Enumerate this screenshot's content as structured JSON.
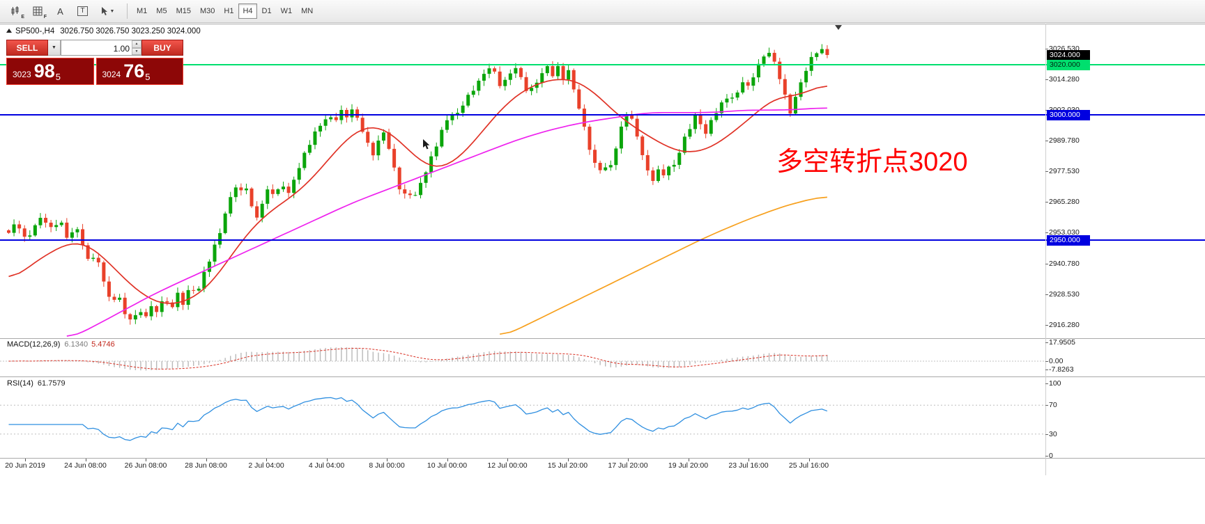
{
  "toolbar": {
    "tools": [
      {
        "badge": "E"
      },
      {
        "badge": "F"
      },
      {
        "label": "A"
      },
      {
        "label": "T"
      },
      {
        "label": ""
      }
    ],
    "timeframes": [
      "M1",
      "M5",
      "M15",
      "M30",
      "H1",
      "H4",
      "D1",
      "W1",
      "MN"
    ],
    "active_timeframe": "H4"
  },
  "chart": {
    "symbol_period": "SP500-,H4",
    "ohlc": "3026.750 3026.750 3023.250 3024.000",
    "trade_panel": {
      "sell_label": "SELL",
      "buy_label": "BUY",
      "volume": "1.00",
      "bid": {
        "prefix": "3023",
        "big": "98",
        "sup": "5"
      },
      "ask": {
        "prefix": "3024",
        "big": "76",
        "sup": "5"
      }
    },
    "annotation": {
      "text": "多空转折点3020",
      "color": "#ff0000"
    },
    "price_axis": {
      "ticks": [
        "3026.530",
        "3014.280",
        "3002.030",
        "2989.780",
        "2977.530",
        "2965.280",
        "2953.030",
        "2940.780",
        "2928.530",
        "2916.280"
      ],
      "badges": [
        {
          "label": "3024.000",
          "price": 3024.0,
          "bg": "#000000",
          "fg": "#ffffff"
        },
        {
          "label": "3020.000",
          "price": 3020.0,
          "bg": "#00df6e",
          "fg": "#00230f"
        },
        {
          "label": "3000.000",
          "price": 3000.0,
          "bg": "#0000e0",
          "fg": "#ffffff"
        },
        {
          "label": "2950.000",
          "price": 2950.0,
          "bg": "#0000e0",
          "fg": "#ffffff"
        }
      ]
    },
    "levels": [
      {
        "price": 3020.0,
        "color": "#00df6e",
        "width": 2
      },
      {
        "price": 3000.0,
        "color": "#0000e0",
        "width": 2
      },
      {
        "price": 2950.0,
        "color": "#0000e0",
        "width": 2
      }
    ]
  },
  "macd": {
    "label": "MACD(12,26,9)",
    "value_main": "6.1340",
    "value_signal": "5.4746",
    "axis_labels": [
      "17.9505",
      "0.00",
      "-7.8263"
    ]
  },
  "rsi": {
    "label": "RSI(14)",
    "value": "61.7579",
    "axis_labels": [
      "100",
      "70",
      "30",
      "0"
    ]
  },
  "time_axis": [
    "20 Jun 2019",
    "24 Jun 08:00",
    "26 Jun 08:00",
    "28 Jun 08:00",
    "2 Jul 04:00",
    "4 Jul 04:00",
    "8 Jul 00:00",
    "10 Jul 00:00",
    "12 Jul 00:00",
    "15 Jul 20:00",
    "17 Jul 20:00",
    "19 Jul 20:00",
    "23 Jul 16:00",
    "25 Jul 16:00"
  ],
  "chart_data": {
    "type": "candlestick",
    "symbol": "SP500-",
    "period": "H4",
    "price_range": [
      2916.28,
      3026.53
    ],
    "last_price": 3024.0,
    "candle_count": 156,
    "colors": {
      "up": "#0ba50b",
      "down": "#e9412a",
      "macd_hist": "#b9b9b9",
      "macd_signal": "#d92f22",
      "rsi": "#2f8fe0"
    },
    "close_path": [
      [
        0,
        2953
      ],
      [
        0.01,
        2957
      ],
      [
        0.02,
        2950
      ],
      [
        0.03,
        2955
      ],
      [
        0.04,
        2960
      ],
      [
        0.052,
        2954
      ],
      [
        0.062,
        2958
      ],
      [
        0.072,
        2951
      ],
      [
        0.082,
        2956
      ],
      [
        0.09,
        2949
      ],
      [
        0.098,
        2940
      ],
      [
        0.106,
        2945
      ],
      [
        0.112,
        2938
      ],
      [
        0.12,
        2930
      ],
      [
        0.128,
        2925
      ],
      [
        0.134,
        2930
      ],
      [
        0.14,
        2921
      ],
      [
        0.146,
        2916
      ],
      [
        0.152,
        2922
      ],
      [
        0.158,
        2918
      ],
      [
        0.164,
        2924
      ],
      [
        0.17,
        2919
      ],
      [
        0.176,
        2925
      ],
      [
        0.182,
        2921
      ],
      [
        0.19,
        2927
      ],
      [
        0.198,
        2922
      ],
      [
        0.206,
        2929
      ],
      [
        0.214,
        2925
      ],
      [
        0.222,
        2932
      ],
      [
        0.23,
        2928
      ],
      [
        0.238,
        2936
      ],
      [
        0.246,
        2943
      ],
      [
        0.254,
        2950
      ],
      [
        0.262,
        2958
      ],
      [
        0.27,
        2966
      ],
      [
        0.276,
        2972
      ],
      [
        0.282,
        2968
      ],
      [
        0.29,
        2972
      ],
      [
        0.296,
        2964
      ],
      [
        0.302,
        2959
      ],
      [
        0.31,
        2965
      ],
      [
        0.318,
        2971
      ],
      [
        0.326,
        2967
      ],
      [
        0.334,
        2973
      ],
      [
        0.342,
        2969
      ],
      [
        0.35,
        2976
      ],
      [
        0.36,
        2983
      ],
      [
        0.37,
        2990
      ],
      [
        0.38,
        2996
      ],
      [
        0.39,
        3000
      ],
      [
        0.398,
        2998
      ],
      [
        0.406,
        3001
      ],
      [
        0.414,
        2999
      ],
      [
        0.42,
        3002
      ],
      [
        0.428,
        2998
      ],
      [
        0.436,
        2991
      ],
      [
        0.444,
        2984
      ],
      [
        0.452,
        2989
      ],
      [
        0.458,
        2993
      ],
      [
        0.464,
        2987
      ],
      [
        0.47,
        2980
      ],
      [
        0.476,
        2973
      ],
      [
        0.482,
        2967
      ],
      [
        0.488,
        2971
      ],
      [
        0.494,
        2965
      ],
      [
        0.5,
        2970
      ],
      [
        0.508,
        2976
      ],
      [
        0.516,
        2983
      ],
      [
        0.524,
        2990
      ],
      [
        0.532,
        2996
      ],
      [
        0.54,
        3001
      ],
      [
        0.546,
        2998
      ],
      [
        0.552,
        3003
      ],
      [
        0.56,
        3007
      ],
      [
        0.57,
        3012
      ],
      [
        0.58,
        3016
      ],
      [
        0.588,
        3019
      ],
      [
        0.596,
        3015
      ],
      [
        0.602,
        3011
      ],
      [
        0.61,
        3016
      ],
      [
        0.618,
        3020
      ],
      [
        0.624,
        3016
      ],
      [
        0.63,
        3011
      ],
      [
        0.636,
        3008
      ],
      [
        0.644,
        3013
      ],
      [
        0.652,
        3017
      ],
      [
        0.658,
        3020
      ],
      [
        0.664,
        3016
      ],
      [
        0.672,
        3019
      ],
      [
        0.678,
        3014
      ],
      [
        0.684,
        3017
      ],
      [
        0.69,
        3011
      ],
      [
        0.696,
        3004
      ],
      [
        0.702,
        2997
      ],
      [
        0.708,
        2989
      ],
      [
        0.714,
        2982
      ],
      [
        0.72,
        2976
      ],
      [
        0.726,
        2981
      ],
      [
        0.732,
        2976
      ],
      [
        0.738,
        2983
      ],
      [
        0.744,
        2990
      ],
      [
        0.75,
        2997
      ],
      [
        0.756,
        3002
      ],
      [
        0.762,
        2997
      ],
      [
        0.768,
        2991
      ],
      [
        0.774,
        2984
      ],
      [
        0.78,
        2978
      ],
      [
        0.786,
        2974
      ],
      [
        0.792,
        2979
      ],
      [
        0.798,
        2975
      ],
      [
        0.804,
        2980
      ],
      [
        0.81,
        2977
      ],
      [
        0.818,
        2984
      ],
      [
        0.826,
        2991
      ],
      [
        0.834,
        2997
      ],
      [
        0.84,
        3001
      ],
      [
        0.846,
        2996
      ],
      [
        0.852,
        2992
      ],
      [
        0.858,
        2997
      ],
      [
        0.864,
        3001
      ],
      [
        0.872,
        3005
      ],
      [
        0.88,
        3009
      ],
      [
        0.886,
        3006
      ],
      [
        0.892,
        3010
      ],
      [
        0.898,
        3014
      ],
      [
        0.904,
        3010
      ],
      [
        0.91,
        3016
      ],
      [
        0.916,
        3020
      ],
      [
        0.922,
        3024
      ],
      [
        0.928,
        3026
      ],
      [
        0.934,
        3022
      ],
      [
        0.94,
        3017
      ],
      [
        0.945,
        3011
      ],
      [
        0.95,
        3005
      ],
      [
        0.955,
        3001
      ],
      [
        0.96,
        3006
      ],
      [
        0.966,
        3012
      ],
      [
        0.972,
        3017
      ],
      [
        0.978,
        3021
      ],
      [
        0.984,
        3024
      ],
      [
        0.99,
        3026
      ],
      [
        1,
        3024
      ]
    ],
    "overlays": [
      {
        "name": "ma-fast-red",
        "color": "#e03226",
        "path": [
          [
            0,
            2933
          ],
          [
            0.03,
            2941
          ],
          [
            0.06,
            2947
          ],
          [
            0.08,
            2950
          ],
          [
            0.1,
            2948
          ],
          [
            0.12,
            2942
          ],
          [
            0.14,
            2935
          ],
          [
            0.16,
            2929
          ],
          [
            0.18,
            2925
          ],
          [
            0.2,
            2924
          ],
          [
            0.22,
            2926
          ],
          [
            0.24,
            2930
          ],
          [
            0.26,
            2938
          ],
          [
            0.28,
            2948
          ],
          [
            0.3,
            2956
          ],
          [
            0.32,
            2962
          ],
          [
            0.34,
            2966
          ],
          [
            0.36,
            2971
          ],
          [
            0.38,
            2978
          ],
          [
            0.4,
            2986
          ],
          [
            0.42,
            2993
          ],
          [
            0.44,
            2996
          ],
          [
            0.46,
            2995
          ],
          [
            0.48,
            2989
          ],
          [
            0.5,
            2982
          ],
          [
            0.52,
            2978
          ],
          [
            0.54,
            2980
          ],
          [
            0.56,
            2986
          ],
          [
            0.58,
            2994
          ],
          [
            0.6,
            3002
          ],
          [
            0.62,
            3008
          ],
          [
            0.64,
            3012
          ],
          [
            0.66,
            3014
          ],
          [
            0.68,
            3015
          ],
          [
            0.7,
            3013
          ],
          [
            0.72,
            3008
          ],
          [
            0.74,
            3001
          ],
          [
            0.76,
            2996
          ],
          [
            0.78,
            2992
          ],
          [
            0.8,
            2988
          ],
          [
            0.82,
            2985
          ],
          [
            0.84,
            2985
          ],
          [
            0.86,
            2987
          ],
          [
            0.88,
            2992
          ],
          [
            0.9,
            2997
          ],
          [
            0.92,
            3003
          ],
          [
            0.94,
            3008
          ],
          [
            0.96,
            3007
          ],
          [
            0.98,
            3010
          ],
          [
            1,
            3013
          ]
        ]
      },
      {
        "name": "ma-medium-magenta",
        "color": "#ee22ee",
        "path": [
          [
            0.07,
            2910
          ],
          [
            0.1,
            2915
          ],
          [
            0.14,
            2922
          ],
          [
            0.18,
            2929
          ],
          [
            0.22,
            2935
          ],
          [
            0.26,
            2941
          ],
          [
            0.3,
            2947
          ],
          [
            0.34,
            2953
          ],
          [
            0.38,
            2959
          ],
          [
            0.42,
            2965
          ],
          [
            0.46,
            2970
          ],
          [
            0.5,
            2975
          ],
          [
            0.54,
            2980
          ],
          [
            0.58,
            2985
          ],
          [
            0.62,
            2990
          ],
          [
            0.66,
            2994
          ],
          [
            0.7,
            2997
          ],
          [
            0.74,
            2999
          ],
          [
            0.78,
            3001
          ],
          [
            0.82,
            3001
          ],
          [
            0.86,
            3001
          ],
          [
            0.9,
            3002
          ],
          [
            0.95,
            3002
          ],
          [
            1,
            3003
          ]
        ]
      },
      {
        "name": "ma-slow-orange",
        "color": "#f7a01d",
        "path": [
          [
            0.6,
            2911
          ],
          [
            0.65,
            2919
          ],
          [
            0.7,
            2927
          ],
          [
            0.75,
            2935
          ],
          [
            0.8,
            2943
          ],
          [
            0.85,
            2951
          ],
          [
            0.9,
            2958
          ],
          [
            0.95,
            2964
          ],
          [
            1,
            2968
          ]
        ]
      }
    ],
    "horizontal_levels": [
      3020.0,
      3000.0,
      2950.0
    ],
    "indicators": [
      {
        "name": "MACD",
        "params": [
          12,
          26,
          9
        ],
        "values": [
          6.134,
          5.4746
        ],
        "scale": [
          17.9505,
          0.0,
          -7.8263
        ]
      },
      {
        "name": "RSI",
        "params": [
          14
        ],
        "value": 61.7579,
        "scale": [
          100,
          70,
          30,
          0
        ]
      }
    ]
  }
}
